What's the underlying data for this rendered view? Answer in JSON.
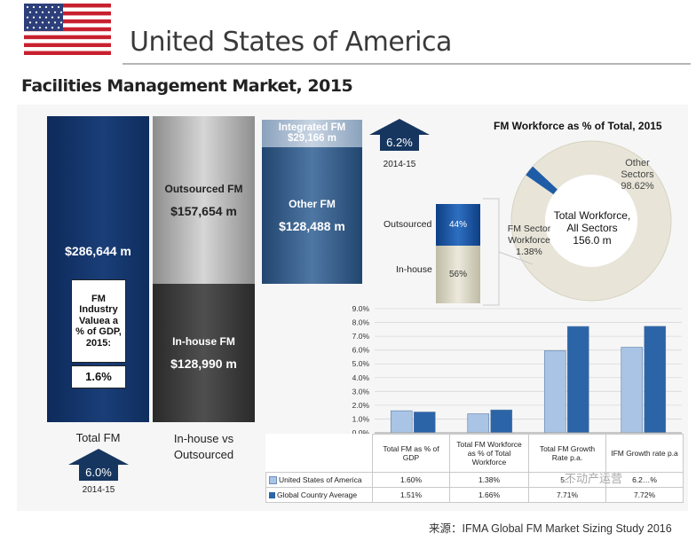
{
  "header": {
    "country_title": "United States of America",
    "subtitle": "Facilities Management Market, 2015"
  },
  "market": {
    "total_value": "$286,644 m",
    "total_label": "Total FM",
    "gdp_box_label": "FM Industry Valuea a % of GDP, 2015:",
    "gdp_box_value": "1.6%",
    "outsourced_label": "Outsourced FM",
    "outsourced_value": "$157,654 m",
    "inhouse_label": "In-house  FM",
    "inhouse_value": "$128,990 m",
    "split_label": "In-house vs Outsourced",
    "integrated_label": "Integrated FM",
    "integrated_value": "$29,166 m",
    "other_label": "Other FM",
    "other_value": "$128,488 m",
    "growth_total": "6.0%",
    "growth_total_period": "2014-15",
    "growth_outsourced": "6.2%",
    "growth_outsourced_period": "2014-15"
  },
  "workforce": {
    "title": "FM Workforce as % of Total, 2015",
    "other_sectors_label": "Other Sectors",
    "other_sectors_pct": "98.62%",
    "center_label": "Total Workforce, All Sectors",
    "center_value": "156.0 m",
    "fm_sector_label": "FM Sector Workforce",
    "fm_sector_pct": "1.38%",
    "fm_sector_share": 1.38,
    "split_outsourced_label": "Outsourced",
    "split_outsourced_pct": "44%",
    "split_inhouse_label": "In-house",
    "split_inhouse_pct": "56%",
    "colors": {
      "donut": "#e9e6d9",
      "fm_slice": "#1f5ca6",
      "outsourced": "#1f5ca6",
      "inhouse": "#e4e1d1"
    }
  },
  "chart_data": {
    "type": "bar",
    "categories": [
      "Total FM as % of GDP",
      "Total FM Workforce as % of Total Workforce",
      "Total FM Growth Rate p.a.",
      "IFM Growth rate p.a"
    ],
    "series": [
      {
        "name": "United States of America",
        "values": [
          1.6,
          1.38,
          5.95,
          6.2
        ],
        "labels": [
          "1.60%",
          "1.38%",
          "5.…",
          "6.2…%"
        ],
        "color": "#a9c4e4"
      },
      {
        "name": "Global Country Average",
        "values": [
          1.51,
          1.66,
          7.71,
          7.72
        ],
        "labels": [
          "1.51%",
          "1.66%",
          "7.71%",
          "7.72%"
        ],
        "color": "#2c64a8"
      }
    ],
    "yticks": [
      "0.0%",
      "1.0%",
      "2.0%",
      "3.0%",
      "4.0%",
      "5.0%",
      "6.0%",
      "7.0%",
      "8.0%",
      "9.0%"
    ],
    "ylim": [
      0,
      9
    ],
    "grid": true
  },
  "footer": {
    "source": "来源：IFMA Global FM Market Sizing Study 2016",
    "watermark": "不动产运营"
  },
  "flag": {
    "stripe_red": "#c8202f",
    "stripe_white": "#ffffff",
    "canton": "#2d3f7a"
  }
}
